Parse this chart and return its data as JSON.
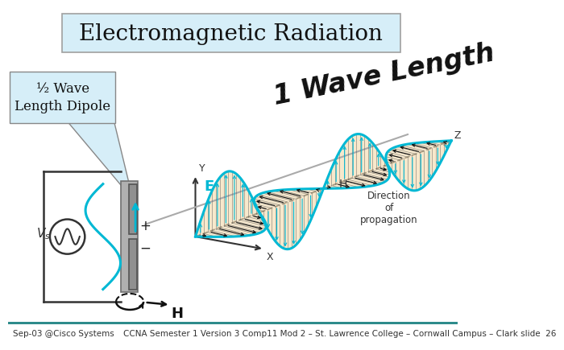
{
  "title": "Electromagnetic Radiation",
  "title_box_color": "#d6eef8",
  "title_box_edge": "#a0a0a0",
  "bg_color": "#ffffff",
  "label_box_text": "½ Wave\nLength Dipole",
  "label_box_color": "#d6eef8",
  "label_box_edge": "#888888",
  "wave_length_text": "1 Wave Length",
  "footer_left": "Sep-03 @Cisco Systems",
  "footer_right": "CCNA Semester 1 Version 3 Comp11 Mod 2 – St. Lawrence College – Cornwall Campus – Clark slide  26",
  "footer_bar_color": "#2e8b8b",
  "e_field_color": "#00b8d4",
  "h_field_shade": "#f5deb3",
  "axis_color": "#333333",
  "dipole_color": "#707070",
  "vs_color": "#333333",
  "arrow_color": "#111111",
  "e_label_color": "#00b8d4",
  "direction_label": "Direction\nof\npropagation"
}
